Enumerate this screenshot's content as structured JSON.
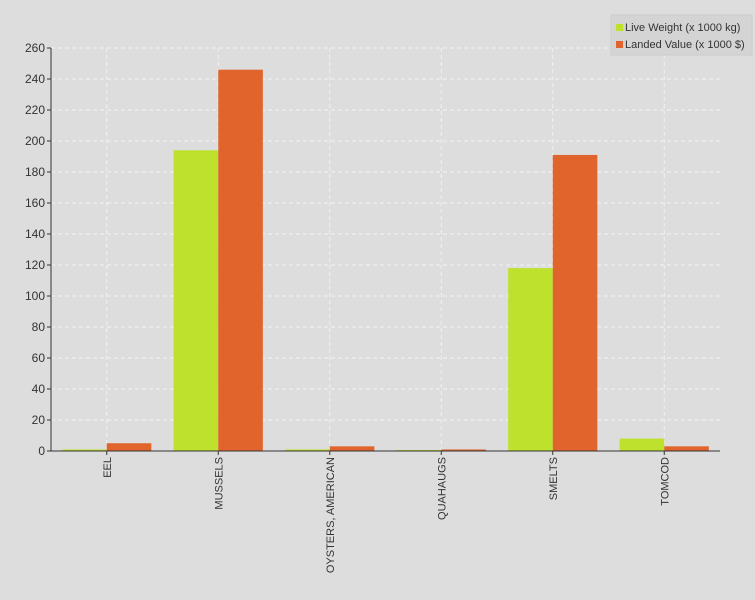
{
  "chart_data": {
    "type": "bar",
    "categories": [
      "EEL",
      "MUSSELS",
      "OYSTERS, AMERICAN",
      "QUAHAUGS",
      "SMELTS",
      "TOMCOD"
    ],
    "series": [
      {
        "name": "Live Weight (x 1000 kg)",
        "color": "#bde12d",
        "values": [
          1,
          194,
          1,
          0.5,
          118,
          8
        ]
      },
      {
        "name": "Landed Value (x 1000 $)",
        "color": "#e0642c",
        "values": [
          5,
          246,
          3,
          1,
          191,
          3
        ]
      }
    ],
    "ylim": [
      0,
      260
    ],
    "yticks": [
      0,
      20,
      40,
      60,
      80,
      100,
      120,
      140,
      160,
      180,
      200,
      220,
      240,
      260
    ],
    "grid": true,
    "legend_position": "top-right",
    "background": "#dddddd"
  }
}
